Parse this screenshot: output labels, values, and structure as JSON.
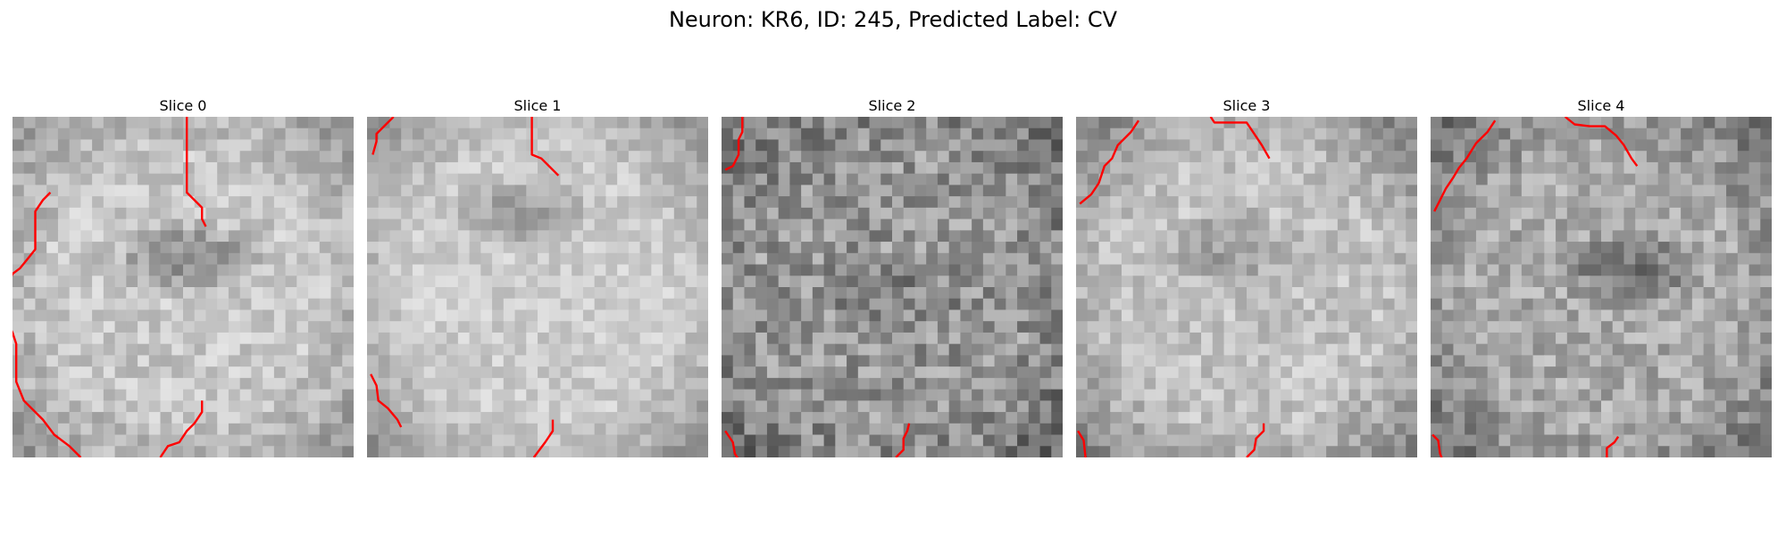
{
  "figure": {
    "title": "Neuron: KR6, ID: 245, Predicted Label: CV",
    "contour_color": "#ff0000",
    "colormap": "gray",
    "grid_size": 30
  },
  "slices": [
    {
      "label": "Slice 0"
    },
    {
      "label": "Slice 1"
    },
    {
      "label": "Slice 2"
    },
    {
      "label": "Slice 3"
    },
    {
      "label": "Slice 4"
    }
  ]
}
